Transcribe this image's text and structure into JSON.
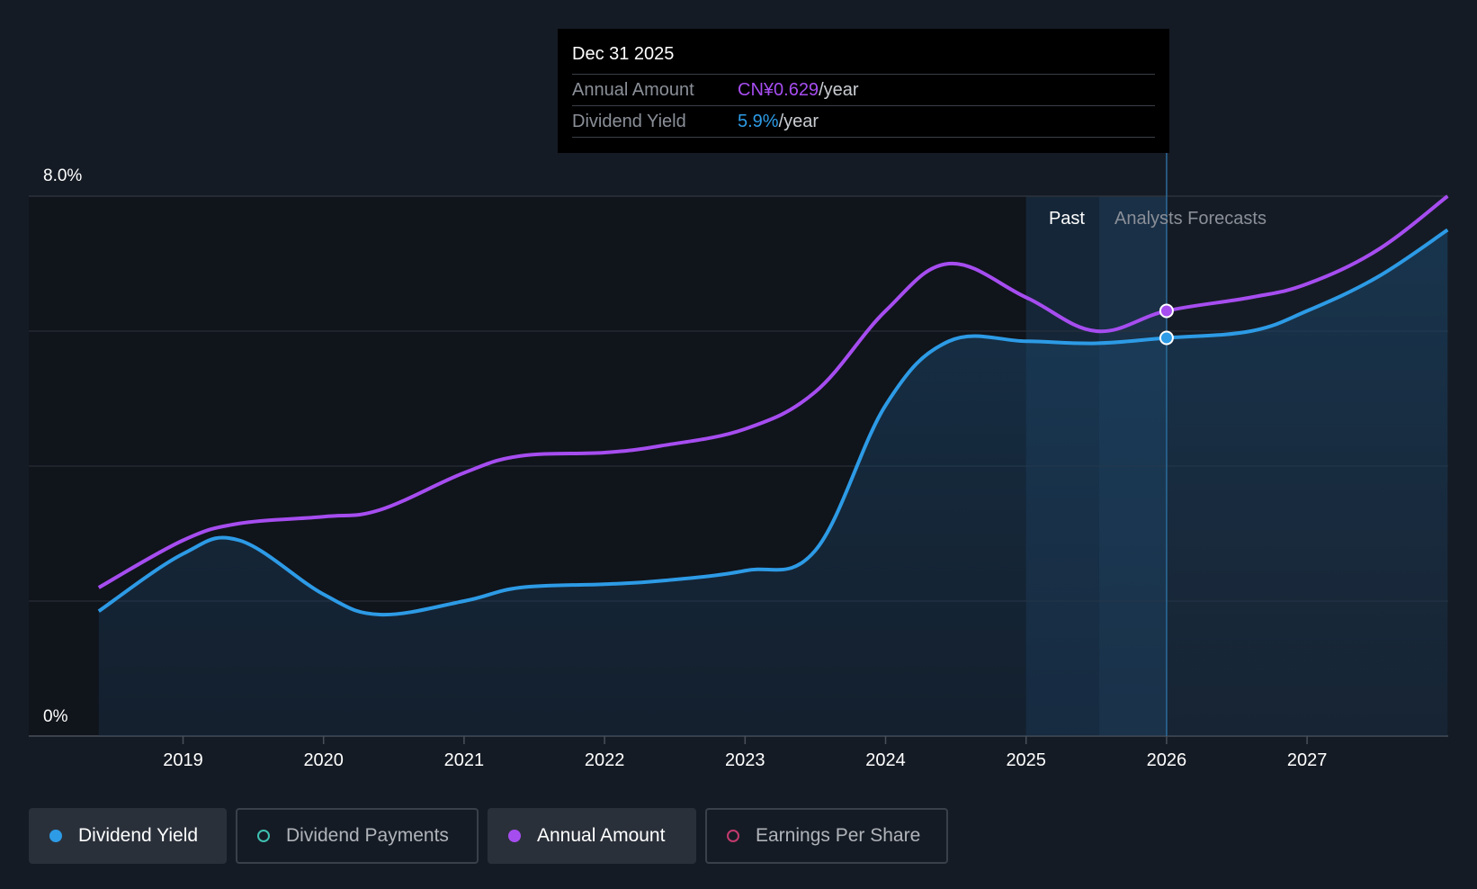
{
  "chart_data": {
    "type": "line",
    "y_axis": {
      "top_label": "8.0%",
      "bottom_label": "0%",
      "ylim": [
        0,
        8.0
      ],
      "unit": "%"
    },
    "x_ticks": [
      "2019",
      "2020",
      "2021",
      "2022",
      "2023",
      "2024",
      "2025",
      "2026",
      "2027"
    ],
    "xlim": [
      2018.4,
      2028.0
    ],
    "regions": {
      "past_label": "Past",
      "forecast_label": "Analysts Forecasts",
      "past_start": 2025.0,
      "forecast_start": 2025.52,
      "cursor": 2026.0
    },
    "series": [
      {
        "name": "Annual Amount",
        "color": "#a64df0",
        "x": [
          2018.4,
          2019.0,
          2019.4,
          2020.0,
          2020.4,
          2021.0,
          2021.4,
          2022.0,
          2022.4,
          2023.0,
          2023.5,
          2024.0,
          2024.45,
          2025.0,
          2025.5,
          2026.0,
          2026.6,
          2027.0,
          2027.5,
          2028.0
        ],
        "values": [
          2.2,
          2.9,
          3.15,
          3.25,
          3.35,
          3.9,
          4.15,
          4.2,
          4.3,
          4.55,
          5.1,
          6.3,
          7.0,
          6.5,
          6.0,
          6.3,
          6.5,
          6.7,
          7.2,
          8.0
        ]
      },
      {
        "name": "Dividend Yield",
        "color": "#2d9be6",
        "x": [
          2018.4,
          2019.0,
          2019.4,
          2020.0,
          2020.4,
          2021.0,
          2021.4,
          2022.0,
          2022.4,
          2023.0,
          2023.5,
          2024.0,
          2024.45,
          2025.0,
          2025.5,
          2026.0,
          2026.6,
          2027.0,
          2027.5,
          2028.0
        ],
        "values": [
          1.85,
          2.7,
          2.9,
          2.1,
          1.8,
          2.0,
          2.2,
          2.25,
          2.3,
          2.45,
          2.75,
          4.9,
          5.85,
          5.85,
          5.82,
          5.9,
          6.0,
          6.3,
          6.8,
          7.5
        ]
      }
    ],
    "tooltip": {
      "date": "Dec 31 2025",
      "rows": [
        {
          "label": "Annual Amount",
          "value": "CN¥0.629",
          "unit": "/year"
        },
        {
          "label": "Dividend Yield",
          "value": "5.9%",
          "unit": "/year"
        }
      ]
    }
  },
  "legend": [
    {
      "label": "Dividend Yield",
      "color": "#2d9be6",
      "active": true
    },
    {
      "label": "Dividend Payments",
      "color": "#3fbfb0",
      "active": false
    },
    {
      "label": "Annual Amount",
      "color": "#a64df0",
      "active": true
    },
    {
      "label": "Earnings Per Share",
      "color": "#c23a6e",
      "active": false
    }
  ]
}
